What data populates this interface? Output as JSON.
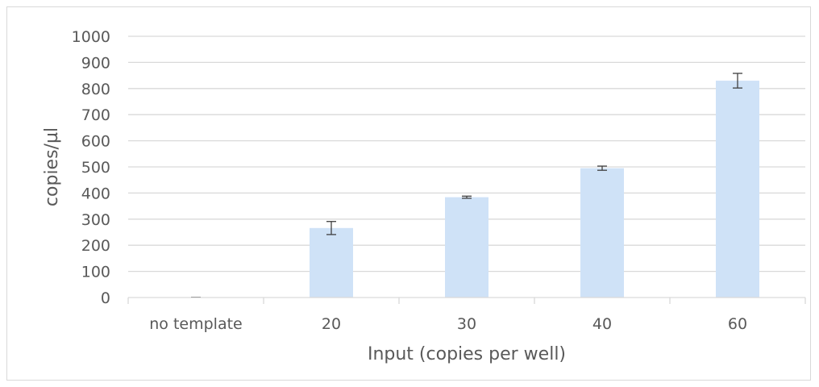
{
  "chart_data": {
    "type": "bar",
    "title": "",
    "xlabel": "Input (copies per well)",
    "ylabel": "copies/µl",
    "categories": [
      "no template",
      "20",
      "30",
      "40",
      "60"
    ],
    "values": [
      1,
      266,
      384,
      495,
      830
    ],
    "error": [
      0,
      25,
      4,
      8,
      28
    ],
    "ylim": [
      0,
      1000
    ],
    "yticks": [
      0,
      100,
      200,
      300,
      400,
      500,
      600,
      700,
      800,
      900,
      1000
    ],
    "grid": true,
    "legend": "none",
    "bar_color": "#cfe2f7",
    "gridline_color": "#d9d9d9",
    "errorbar_color": "#404040"
  }
}
